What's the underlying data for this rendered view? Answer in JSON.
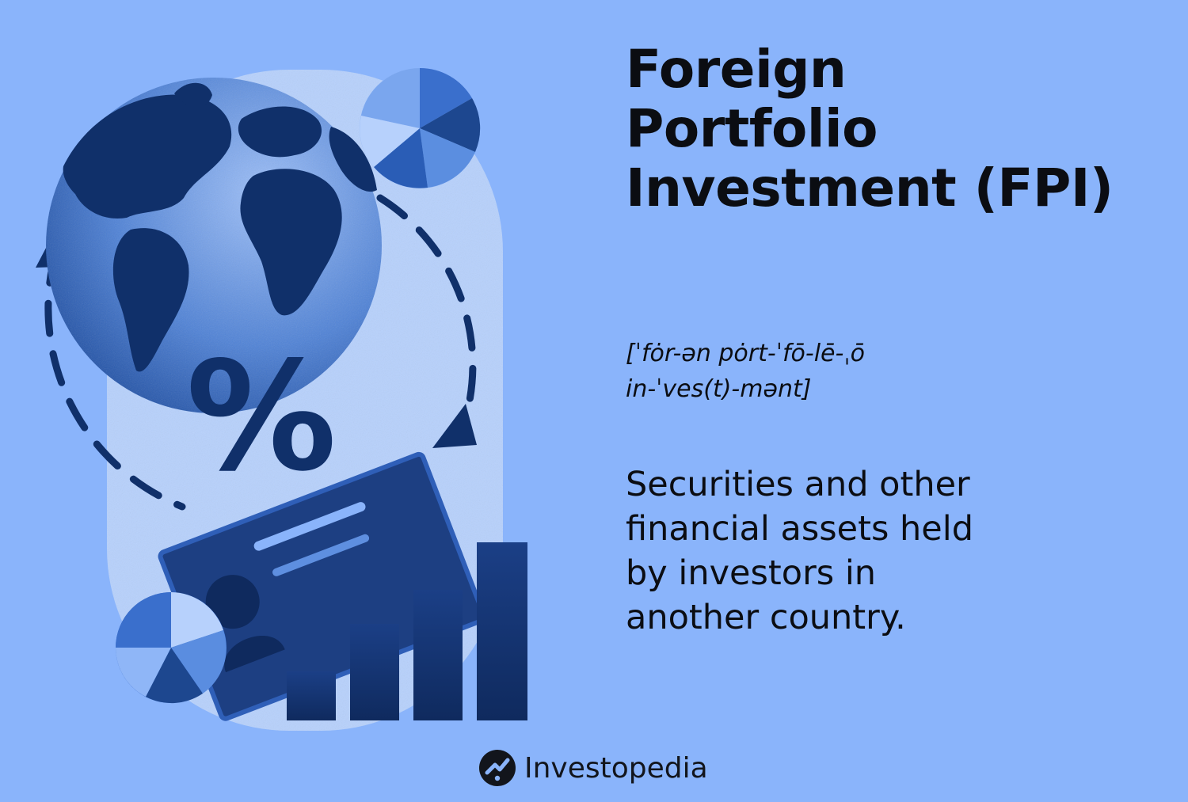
{
  "title_lines": [
    "Foreign",
    "Portfolio",
    "Investment (FPI)"
  ],
  "pronunciation_lines": [
    "[ˈfȯr-ən pȯrt-ˈfō-lē-ˌō",
    "in-ˈves(t)-mənt]"
  ],
  "definition_lines": [
    "Securities and other",
    "financial assets held",
    "by investors in",
    "another country."
  ],
  "illustration": {
    "percent_symbol": "%",
    "icons": [
      "globe-icon",
      "pie-chart-icon",
      "bar-chart-icon",
      "certificate-icon",
      "cycle-arrows-icon"
    ]
  },
  "brand": {
    "name": "Investopedia",
    "logo_icon": "investopedia-logo-icon"
  },
  "colors": {
    "background": "#8ab4fb",
    "dark_navy": "#10306a",
    "mid_blue": "#2f66c8",
    "light_blue": "#b7d1fc",
    "text": "#0b0d12"
  }
}
